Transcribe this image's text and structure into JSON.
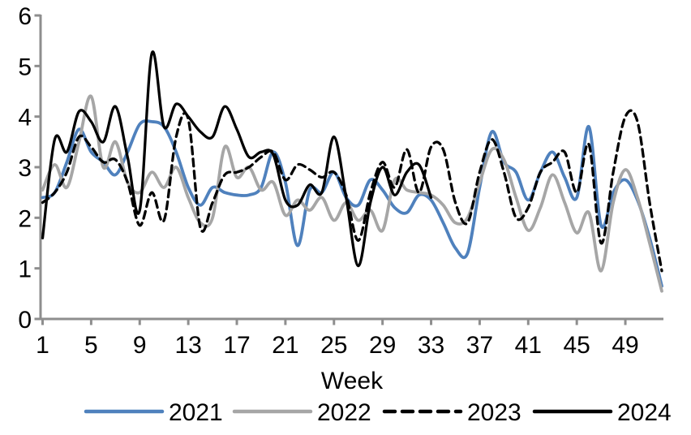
{
  "chart_data": {
    "type": "line",
    "title": "",
    "xlabel": "Week",
    "ylabel": "",
    "xlim": [
      1,
      52
    ],
    "ylim": [
      0,
      6
    ],
    "grid": false,
    "legend_position": "bottom",
    "x_ticks": [
      1,
      5,
      9,
      13,
      17,
      21,
      25,
      29,
      33,
      37,
      41,
      45,
      49
    ],
    "y_ticks": [
      0,
      1,
      2,
      3,
      4,
      5,
      6
    ],
    "x": [
      1,
      2,
      3,
      4,
      5,
      6,
      7,
      8,
      9,
      10,
      11,
      12,
      13,
      14,
      15,
      16,
      17,
      18,
      19,
      20,
      21,
      22,
      23,
      24,
      25,
      26,
      27,
      28,
      29,
      30,
      31,
      32,
      33,
      34,
      35,
      36,
      37,
      38,
      39,
      40,
      41,
      42,
      43,
      44,
      45,
      46,
      47,
      48,
      49,
      50,
      51,
      52
    ],
    "series": [
      {
        "name": "2021",
        "color": "#4F81BD",
        "style": "solid",
        "values": [
          2.4,
          2.5,
          3.1,
          3.75,
          3.3,
          3.1,
          2.85,
          3.3,
          3.85,
          3.9,
          3.8,
          3.3,
          2.6,
          2.25,
          2.6,
          2.5,
          2.45,
          2.45,
          2.6,
          3.3,
          2.7,
          1.45,
          2.55,
          2.5,
          2.9,
          2.4,
          2.25,
          2.75,
          2.55,
          2.2,
          2.1,
          2.45,
          2.35,
          1.9,
          1.4,
          1.3,
          2.6,
          3.7,
          3.1,
          2.9,
          2.35,
          2.9,
          3.3,
          2.8,
          2.4,
          3.8,
          1.85,
          2.5,
          2.75,
          2.35,
          1.6,
          0.65
        ]
      },
      {
        "name": "2022",
        "color": "#A6A6A6",
        "style": "solid",
        "values": [
          2.55,
          3.05,
          2.6,
          3.5,
          4.4,
          3.0,
          3.5,
          2.7,
          2.5,
          2.9,
          2.6,
          3.0,
          2.4,
          1.9,
          2.0,
          3.4,
          2.8,
          3.0,
          2.55,
          2.7,
          2.05,
          2.35,
          2.15,
          2.4,
          1.95,
          2.3,
          1.95,
          2.15,
          1.75,
          2.75,
          2.55,
          2.5,
          2.45,
          2.25,
          1.9,
          2.0,
          2.7,
          3.35,
          3.15,
          2.4,
          1.75,
          2.2,
          2.85,
          2.3,
          1.7,
          2.1,
          0.95,
          2.3,
          2.95,
          2.4,
          1.5,
          0.55
        ]
      },
      {
        "name": "2023",
        "color": "#000000",
        "style": "dashed",
        "values": [
          2.3,
          2.5,
          2.9,
          3.6,
          3.4,
          3.1,
          3.15,
          2.7,
          1.85,
          2.5,
          1.95,
          3.6,
          3.95,
          1.8,
          2.3,
          2.85,
          2.9,
          3.0,
          3.2,
          3.3,
          2.75,
          3.05,
          2.95,
          2.8,
          2.9,
          2.45,
          1.55,
          2.5,
          3.1,
          2.6,
          3.35,
          2.5,
          3.4,
          3.35,
          2.3,
          1.9,
          2.9,
          3.55,
          2.9,
          2.0,
          2.2,
          2.9,
          3.1,
          3.3,
          2.5,
          3.45,
          1.5,
          2.9,
          4.0,
          3.9,
          2.3,
          0.95
        ]
      },
      {
        "name": "2024",
        "color": "#000000",
        "style": "solid",
        "values": [
          1.6,
          3.55,
          3.3,
          4.1,
          3.9,
          3.5,
          4.2,
          3.2,
          2.15,
          5.25,
          3.8,
          4.25,
          4.0,
          3.7,
          3.6,
          4.2,
          3.75,
          3.2,
          3.3,
          3.25,
          2.35,
          2.25,
          2.65,
          2.5,
          3.6,
          2.4,
          1.05,
          2.3,
          3.0,
          2.45,
          2.9,
          3.05,
          2.4
        ]
      }
    ],
    "legend": [
      "2021",
      "2022",
      "2023",
      "2024"
    ]
  },
  "colors": {
    "background": "#FFFFFF",
    "axis": "#8E8E8E",
    "text": "#000000",
    "accent_blue": "#4F81BD",
    "accent_gray": "#A6A6A6",
    "accent_black": "#000000"
  }
}
